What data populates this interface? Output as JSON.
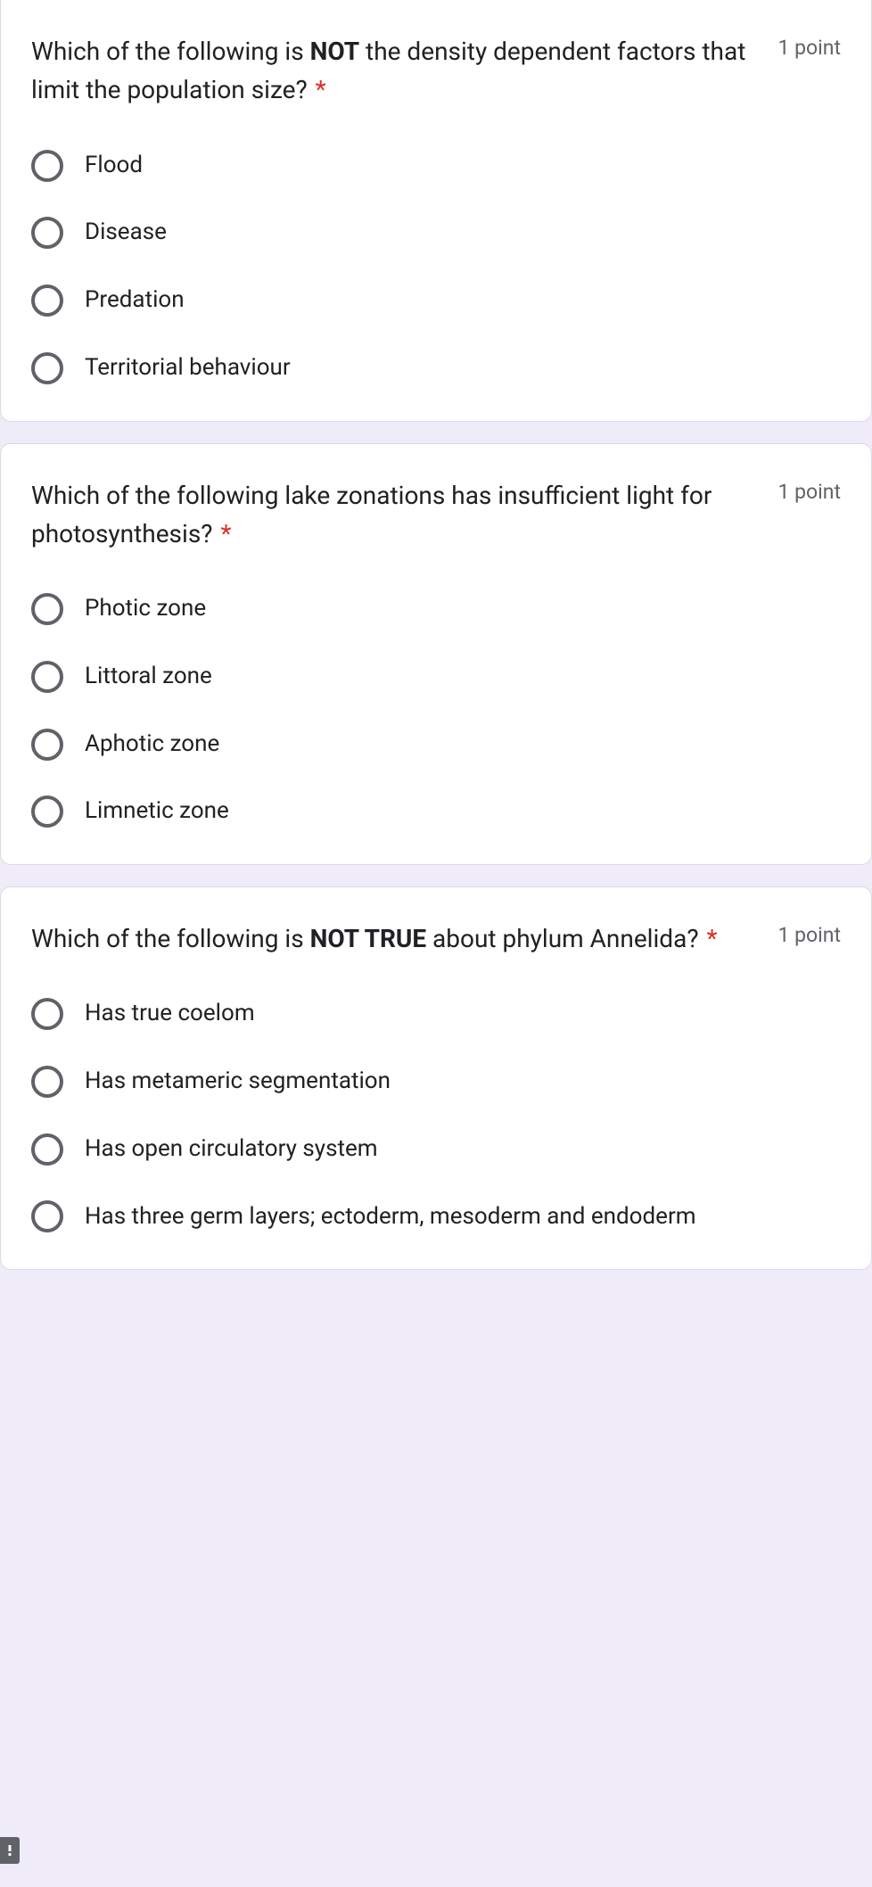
{
  "questions": [
    {
      "text_parts": [
        "Which of the following is ",
        "NOT",
        " the density dependent factors that limit the population size?"
      ],
      "bold_index": 1,
      "required": true,
      "points": "1 point",
      "options": [
        "Flood",
        "Disease",
        "Predation",
        "Territorial behaviour"
      ]
    },
    {
      "text_parts": [
        "Which of the following lake zonations has insufficient light for photosynthesis?"
      ],
      "bold_index": -1,
      "required": true,
      "points": "1 point",
      "options": [
        "Photic zone",
        "Littoral zone",
        "Aphotic zone",
        "Limnetic zone"
      ]
    },
    {
      "text_parts": [
        "Which of the following is ",
        "NOT TRUE",
        " about phylum Annelida?"
      ],
      "bold_index": 1,
      "required": true,
      "points": "1 point",
      "options": [
        "Has true coelom",
        "Has metameric segmentation",
        "Has open circulatory system",
        "Has three germ layers; ectoderm, mesoderm and endoderm"
      ]
    }
  ],
  "colors": {
    "page_bg": "#f0ebf8",
    "card_bg": "#ffffff",
    "text": "#202124",
    "muted": "#5f6368",
    "required": "#d93025",
    "border": "#dadce0"
  }
}
